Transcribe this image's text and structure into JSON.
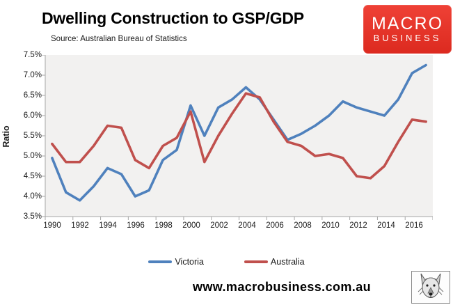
{
  "header": {
    "title": "Dwelling Construction to GSP/GDP",
    "source": "Source: Australian Bureau of Statistics",
    "logo": {
      "line1": "MACRO",
      "line2": "BUSINESS",
      "bg_color": "#e23b2e",
      "text_color": "#ffffff"
    }
  },
  "chart_data": {
    "type": "line",
    "title": "Dwelling Construction to GSP/GDP",
    "xlabel": "",
    "ylabel": "Ratio",
    "ylim": [
      3.5,
      7.5
    ],
    "y_step": 0.5,
    "grid": false,
    "plot_bg": "#f2f1f0",
    "axis_color": "#a6a6a6",
    "legend_position": "bottom",
    "x": [
      1990,
      1991,
      1992,
      1993,
      1994,
      1995,
      1996,
      1997,
      1998,
      1999,
      2000,
      2001,
      2002,
      2003,
      2004,
      2005,
      2006,
      2007,
      2008,
      2009,
      2010,
      2011,
      2012,
      2013,
      2014,
      2015,
      2016,
      2017
    ],
    "x_tick_labels": [
      "1990",
      "1992",
      "1994",
      "1996",
      "1998",
      "2000",
      "2002",
      "2004",
      "2006",
      "2008",
      "2010",
      "2012",
      "2014",
      "2016"
    ],
    "y_tick_labels": [
      "7.5%",
      "7.0%",
      "6.5%",
      "6.0%",
      "5.5%",
      "5.0%",
      "4.5%",
      "4.0%",
      "3.5%"
    ],
    "series": [
      {
        "name": "Victoria",
        "color": "#4F81BD",
        "values": [
          4.95,
          4.1,
          3.9,
          4.25,
          4.7,
          4.55,
          4.0,
          4.15,
          4.9,
          5.15,
          6.25,
          5.5,
          6.2,
          6.4,
          6.7,
          6.4,
          5.9,
          5.4,
          5.55,
          5.75,
          6.0,
          6.35,
          6.2,
          6.1,
          6.0,
          6.4,
          7.05,
          7.25
        ]
      },
      {
        "name": "Australia",
        "color": "#C0504D",
        "values": [
          5.3,
          4.85,
          4.85,
          5.25,
          5.75,
          5.7,
          4.9,
          4.7,
          5.25,
          5.45,
          6.1,
          4.85,
          5.5,
          6.05,
          6.55,
          6.45,
          5.85,
          5.35,
          5.25,
          5.0,
          5.05,
          4.95,
          4.5,
          4.45,
          4.75,
          5.35,
          5.9,
          5.85
        ]
      }
    ]
  },
  "footer": {
    "url": "www.macrobusiness.com.au"
  }
}
